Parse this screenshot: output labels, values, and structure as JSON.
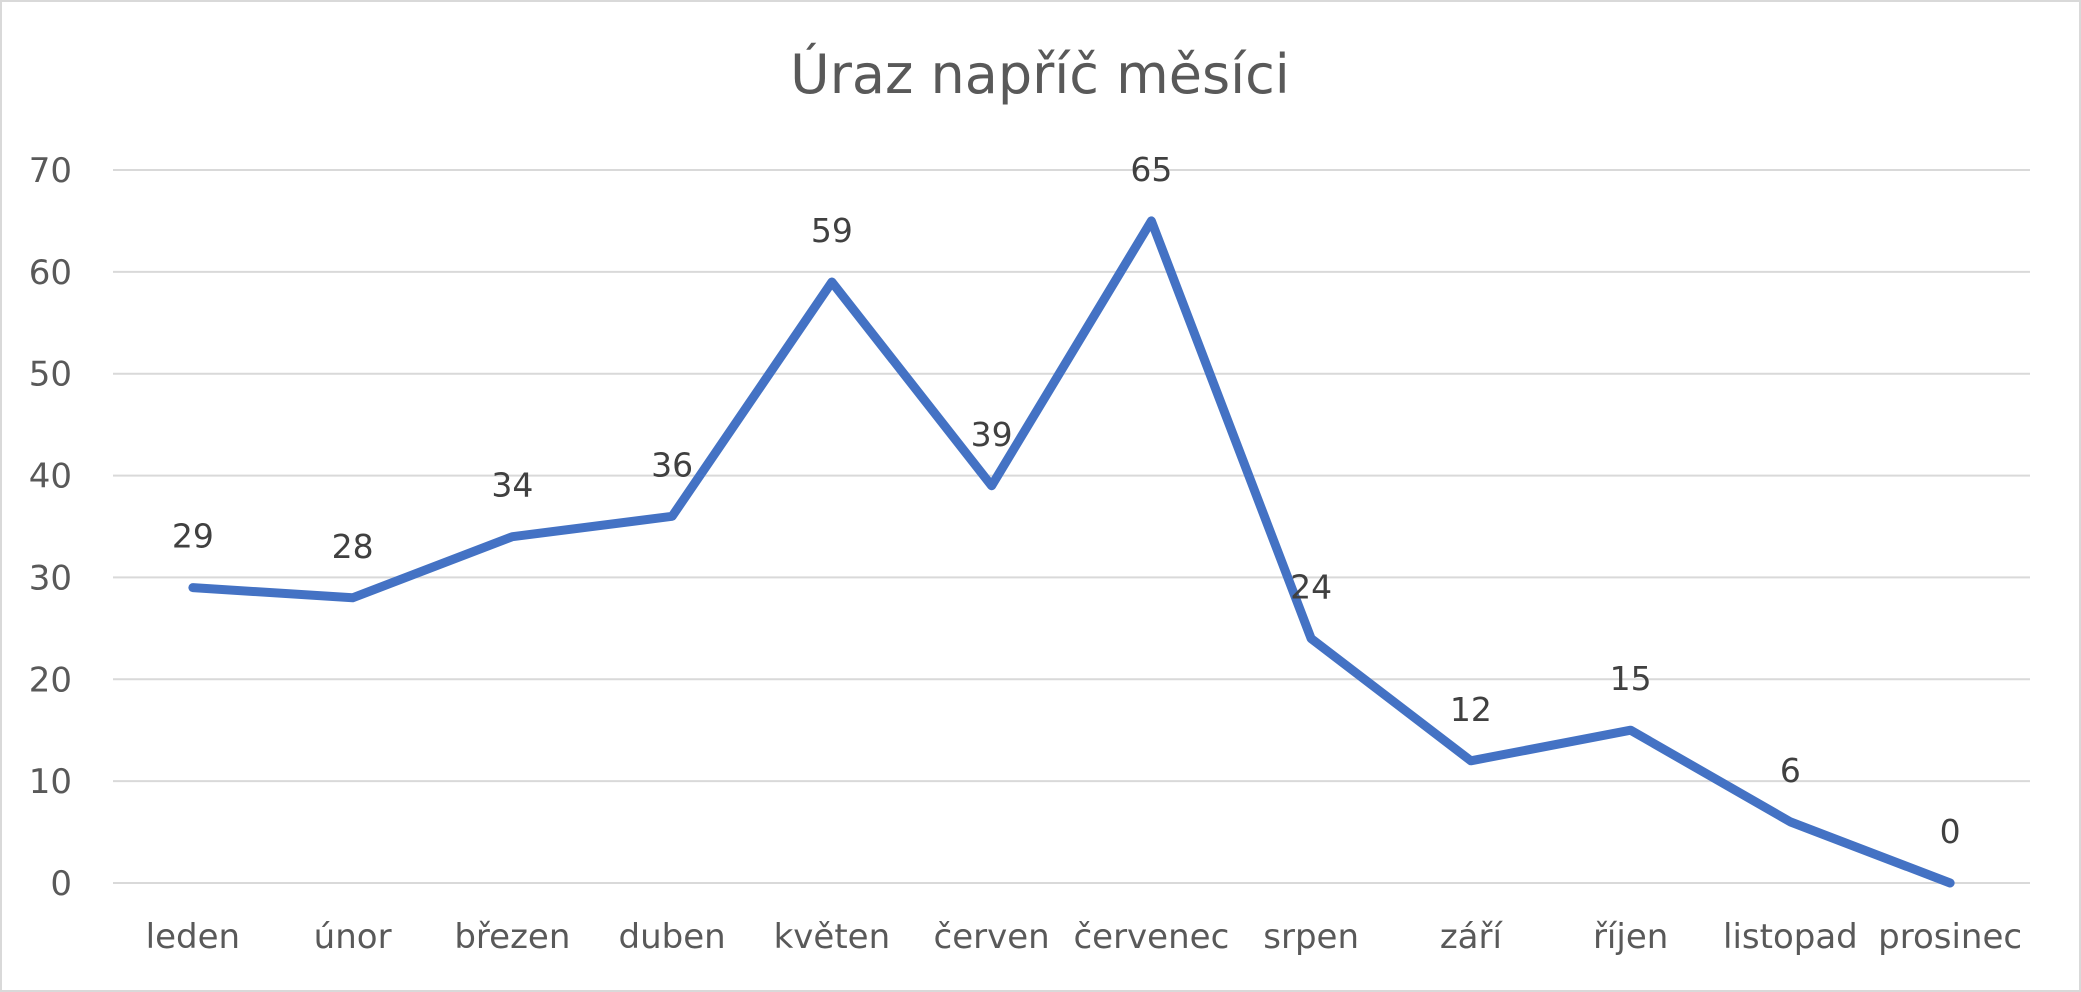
{
  "chart_data": {
    "type": "line",
    "title": "Úraz napříč měsíci",
    "xlabel": "",
    "ylabel": "",
    "categories": [
      "leden",
      "únor",
      "březen",
      "duben",
      "květen",
      "červen",
      "červenec",
      "srpen",
      "září",
      "říjen",
      "listopad",
      "prosinec"
    ],
    "series": [
      {
        "values": [
          29,
          28,
          34,
          36,
          59,
          39,
          65,
          24,
          12,
          15,
          6,
          0
        ],
        "color": "#4472C4"
      }
    ],
    "ylim": [
      0,
      70
    ],
    "yticks": [
      0,
      10,
      20,
      30,
      40,
      50,
      60,
      70
    ],
    "grid": true,
    "data_labels": true,
    "legend": "none"
  }
}
